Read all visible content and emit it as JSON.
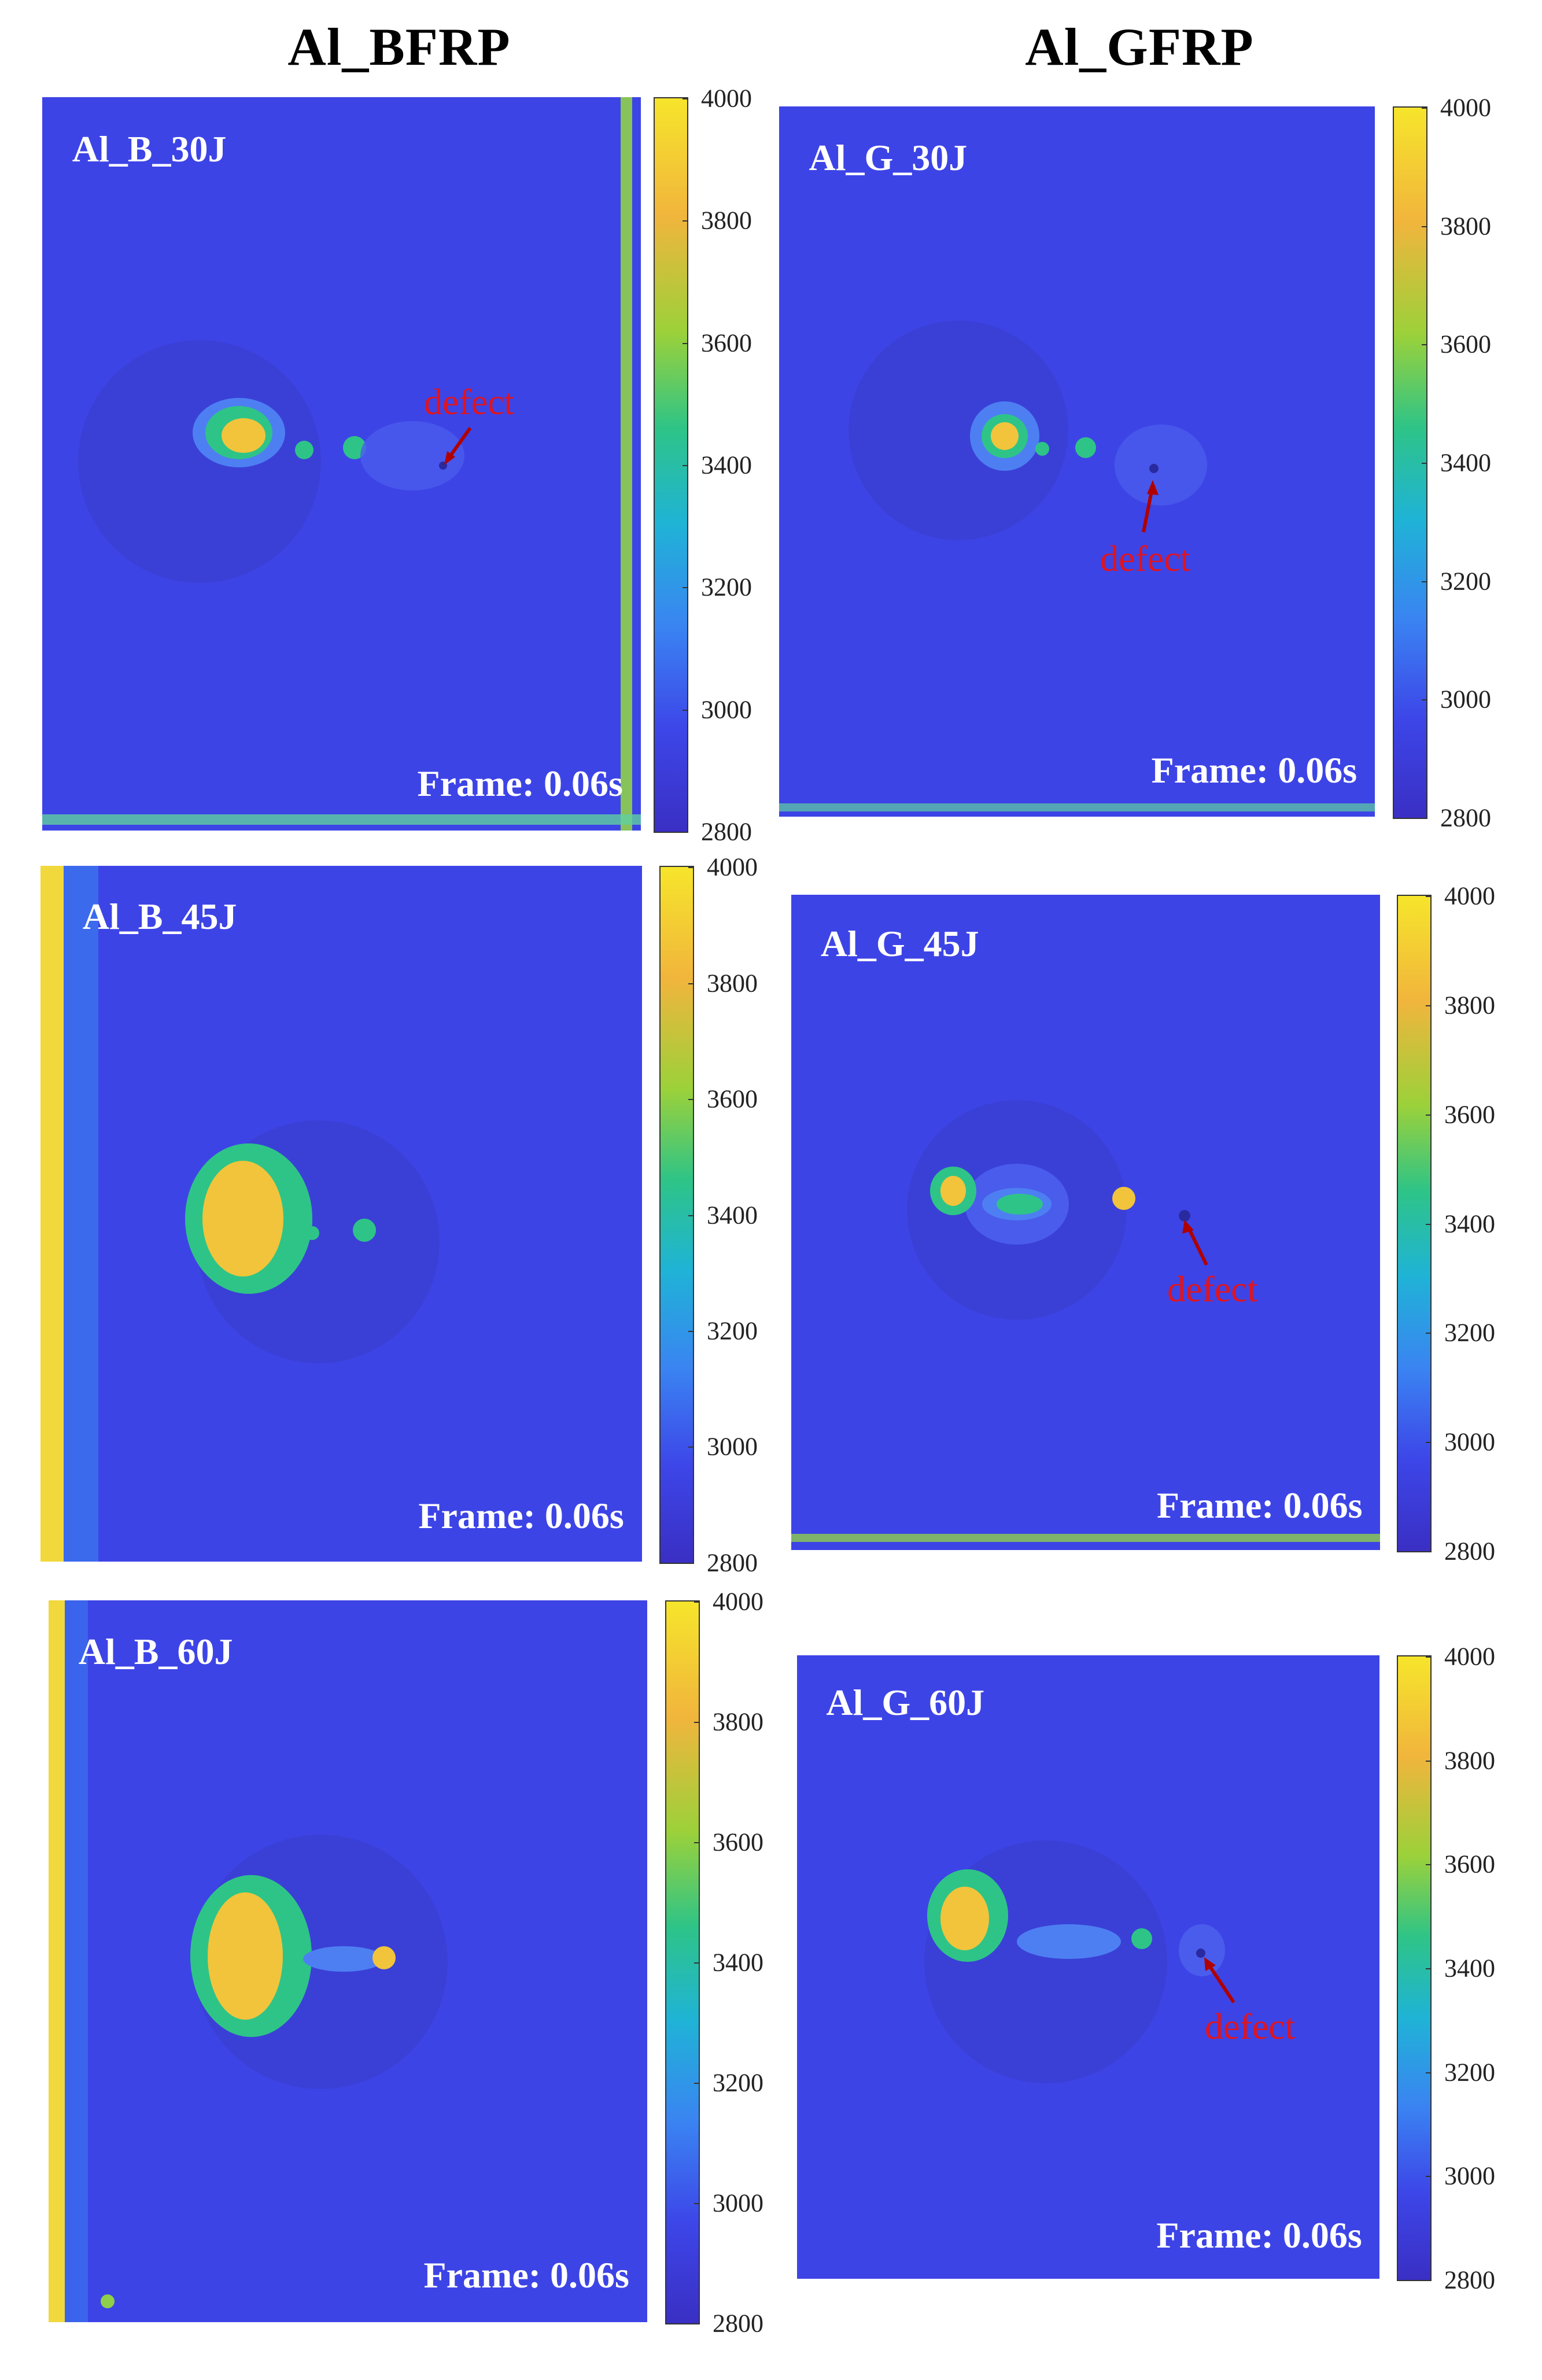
{
  "figure": {
    "columns": [
      {
        "title": "Al_BFRP"
      },
      {
        "title": "Al_GFRP"
      }
    ],
    "colorbar": {
      "ticks": [
        "4000",
        "3800",
        "3600",
        "3400",
        "3200",
        "3000",
        "2800"
      ],
      "min": 2800,
      "max": 4000,
      "colormap": "parula"
    },
    "panels": [
      {
        "label": "Al_B_30J",
        "frame": "Frame: 0.06s",
        "defect_label": "defect"
      },
      {
        "label": "Al_G_30J",
        "frame": "Frame: 0.06s",
        "defect_label": "defect"
      },
      {
        "label": "Al_B_45J",
        "frame": "Frame: 0.06s"
      },
      {
        "label": "Al_G_45J",
        "frame": "Frame: 0.06s",
        "defect_label": "defect"
      },
      {
        "label": "Al_B_60J",
        "frame": "Frame: 0.06s"
      },
      {
        "label": "Al_G_60J",
        "frame": "Frame: 0.06s",
        "defect_label": "defect"
      }
    ]
  },
  "colors": {
    "background_field": "#3d44e6",
    "hot_spot": "#f6e52b",
    "warm": "#2ec487",
    "defect_annotation": "#e0141e",
    "label_text": "#ffffff"
  }
}
